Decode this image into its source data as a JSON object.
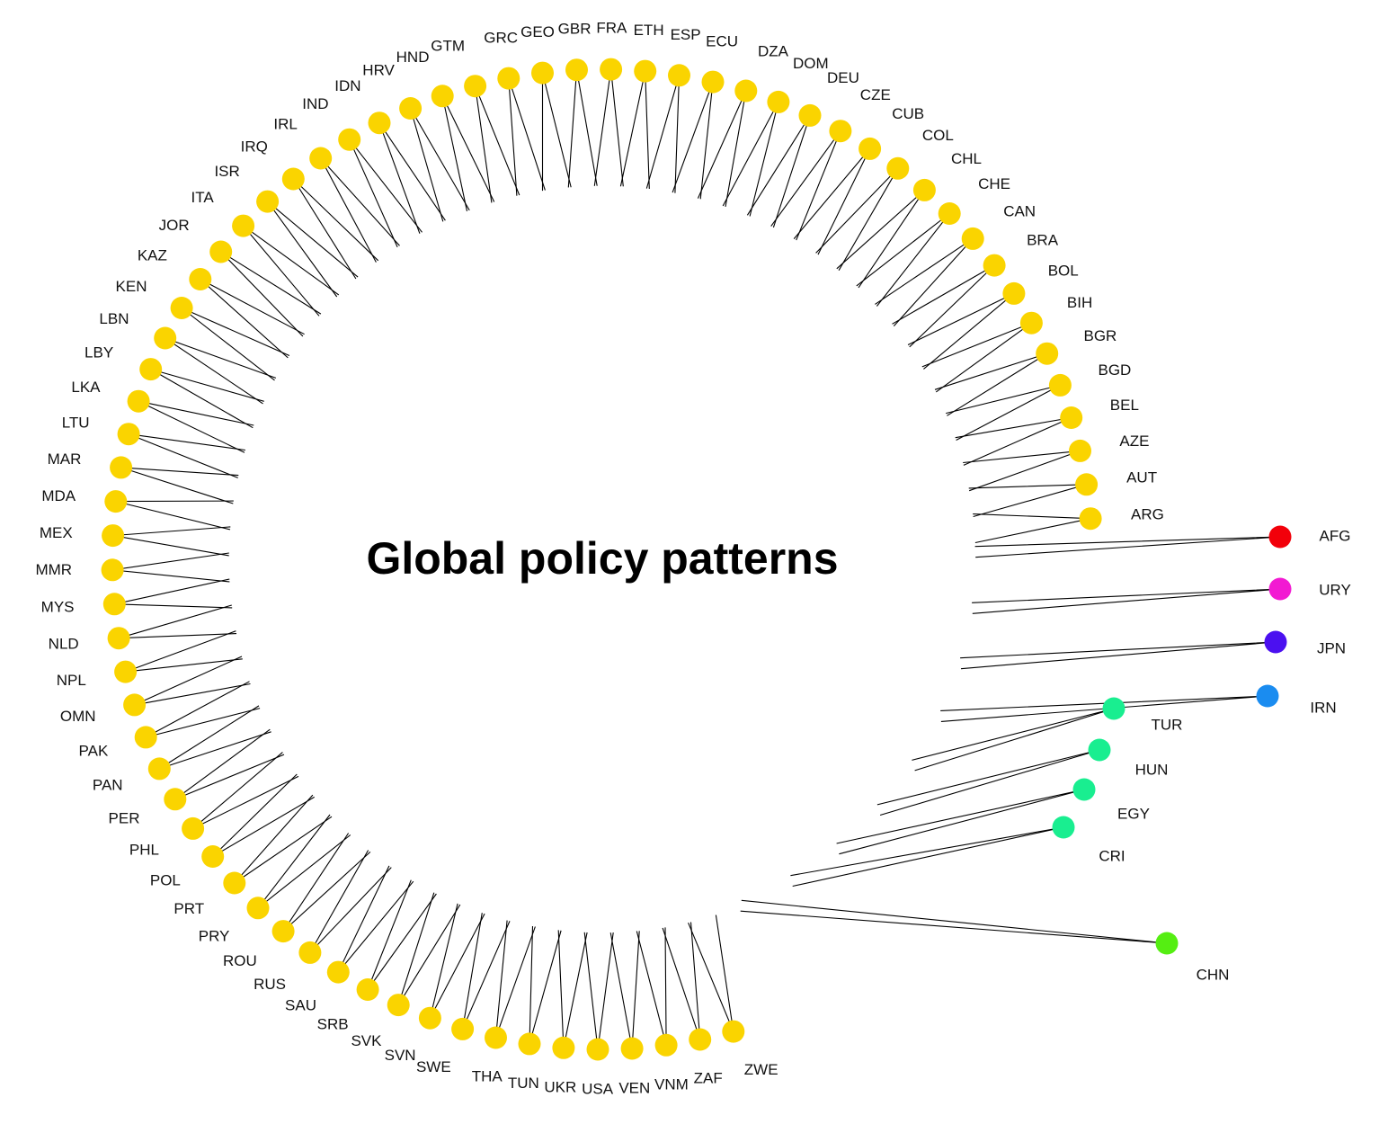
{
  "chart_data": {
    "type": "circular-dendrogram",
    "title": "Global policy patterns",
    "colors": {
      "AFG": "#f2000a",
      "URY": "#f21ad2",
      "JPN": "#4b10f0",
      "IRN": "#1a8cf0",
      "TUR": "#19ee90",
      "HUN": "#19ee90",
      "EGY": "#19ee90",
      "CRI": "#19ee90",
      "CHN": "#55ee12",
      "default": "#fad400"
    },
    "leaves": [
      {
        "name": "AFG",
        "outlier": true
      },
      {
        "name": "URY",
        "outlier": true
      },
      {
        "name": "JPN",
        "outlier": true
      },
      {
        "name": "IRN",
        "outlier": true
      },
      {
        "name": "TUR",
        "outlier": true
      },
      {
        "name": "HUN",
        "outlier": true
      },
      {
        "name": "EGY",
        "outlier": true
      },
      {
        "name": "CRI",
        "outlier": true
      },
      {
        "name": "CHN",
        "outlier": true
      },
      {
        "name": "ZWE"
      },
      {
        "name": "ZAF"
      },
      {
        "name": "VNM"
      },
      {
        "name": "VEN"
      },
      {
        "name": "USA"
      },
      {
        "name": "UKR"
      },
      {
        "name": "TUN"
      },
      {
        "name": "THA"
      },
      {
        "name": "SWE"
      },
      {
        "name": "SVN"
      },
      {
        "name": "SVK"
      },
      {
        "name": "SRB"
      },
      {
        "name": "SAU"
      },
      {
        "name": "RUS"
      },
      {
        "name": "ROU"
      },
      {
        "name": "PRY"
      },
      {
        "name": "PRT"
      },
      {
        "name": "POL"
      },
      {
        "name": "PHL"
      },
      {
        "name": "PER"
      },
      {
        "name": "PAN"
      },
      {
        "name": "PAK"
      },
      {
        "name": "OMN"
      },
      {
        "name": "NPL"
      },
      {
        "name": "NLD"
      },
      {
        "name": "MYS"
      },
      {
        "name": "MMR"
      },
      {
        "name": "MEX"
      },
      {
        "name": "MDA"
      },
      {
        "name": "MAR"
      },
      {
        "name": "LTU"
      },
      {
        "name": "LKA"
      },
      {
        "name": "LBY"
      },
      {
        "name": "LBN"
      },
      {
        "name": "KEN"
      },
      {
        "name": "KAZ"
      },
      {
        "name": "JOR"
      },
      {
        "name": "ITA"
      },
      {
        "name": "ISR"
      },
      {
        "name": "IRQ"
      },
      {
        "name": "IRL"
      },
      {
        "name": "IND"
      },
      {
        "name": "IDN"
      },
      {
        "name": "HRV"
      },
      {
        "name": "HND"
      },
      {
        "name": "GTM"
      },
      {
        "name": "GRC"
      },
      {
        "name": "GEO"
      },
      {
        "name": "GBR"
      },
      {
        "name": "FRA"
      },
      {
        "name": "ETH"
      },
      {
        "name": "ESP"
      },
      {
        "name": "ECU"
      },
      {
        "name": "DZA"
      },
      {
        "name": "DOM"
      },
      {
        "name": "DEU"
      },
      {
        "name": "CZE"
      },
      {
        "name": "CUB"
      },
      {
        "name": "COL"
      },
      {
        "name": "CHL"
      },
      {
        "name": "CHE"
      },
      {
        "name": "CAN"
      },
      {
        "name": "BRA"
      },
      {
        "name": "BOL"
      },
      {
        "name": "BIH"
      },
      {
        "name": "BGR"
      },
      {
        "name": "BGD"
      },
      {
        "name": "BEL"
      },
      {
        "name": "AZE"
      },
      {
        "name": "AUT"
      },
      {
        "name": "ARG"
      }
    ]
  }
}
